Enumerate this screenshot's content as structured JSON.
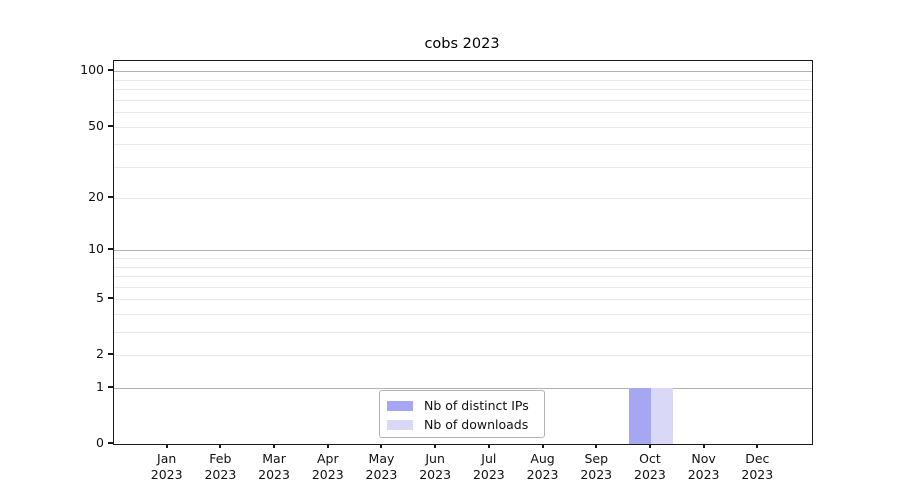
{
  "figure": {
    "title": "cobs 2023"
  },
  "chart_data": {
    "type": "bar",
    "title": "cobs 2023",
    "categories": [
      "Jan 2023",
      "Feb 2023",
      "Mar 2023",
      "Apr 2023",
      "May 2023",
      "Jun 2023",
      "Jul 2023",
      "Aug 2023",
      "Sep 2023",
      "Oct 2023",
      "Nov 2023",
      "Dec 2023"
    ],
    "series": [
      {
        "name": "Nb of distinct IPs",
        "color": "#a6a6f2",
        "values": [
          0,
          0,
          0,
          0,
          0,
          0,
          0,
          0,
          0,
          1,
          0,
          0
        ]
      },
      {
        "name": "Nb of downloads",
        "color": "#d9d9f7",
        "values": [
          0,
          0,
          0,
          0,
          0,
          0,
          0,
          0,
          0,
          1,
          0,
          0
        ]
      }
    ],
    "yscale": "log1p",
    "ylim": [
      0,
      114
    ],
    "y_ticks": [
      0,
      1,
      2,
      5,
      10,
      20,
      50,
      100
    ],
    "y_major_gridlines": [
      1,
      10,
      100
    ],
    "y_minor_gridlines": [
      2,
      3,
      4,
      5,
      6,
      7,
      8,
      9,
      20,
      30,
      40,
      50,
      60,
      70,
      80,
      90
    ],
    "grid": true,
    "legend_position": "lower-center-inside",
    "colors": {
      "major_grid": "#b2b2b2",
      "minor_grid": "#e9e9e9",
      "spine": "#1a1a1a",
      "text": "#111111",
      "legend_border": "#b3b3b3",
      "background": "#ffffff"
    }
  },
  "legend": {
    "items": [
      {
        "label": "Nb of distinct IPs",
        "color": "#a6a6f2"
      },
      {
        "label": "Nb of downloads",
        "color": "#d9d9f7"
      }
    ]
  }
}
